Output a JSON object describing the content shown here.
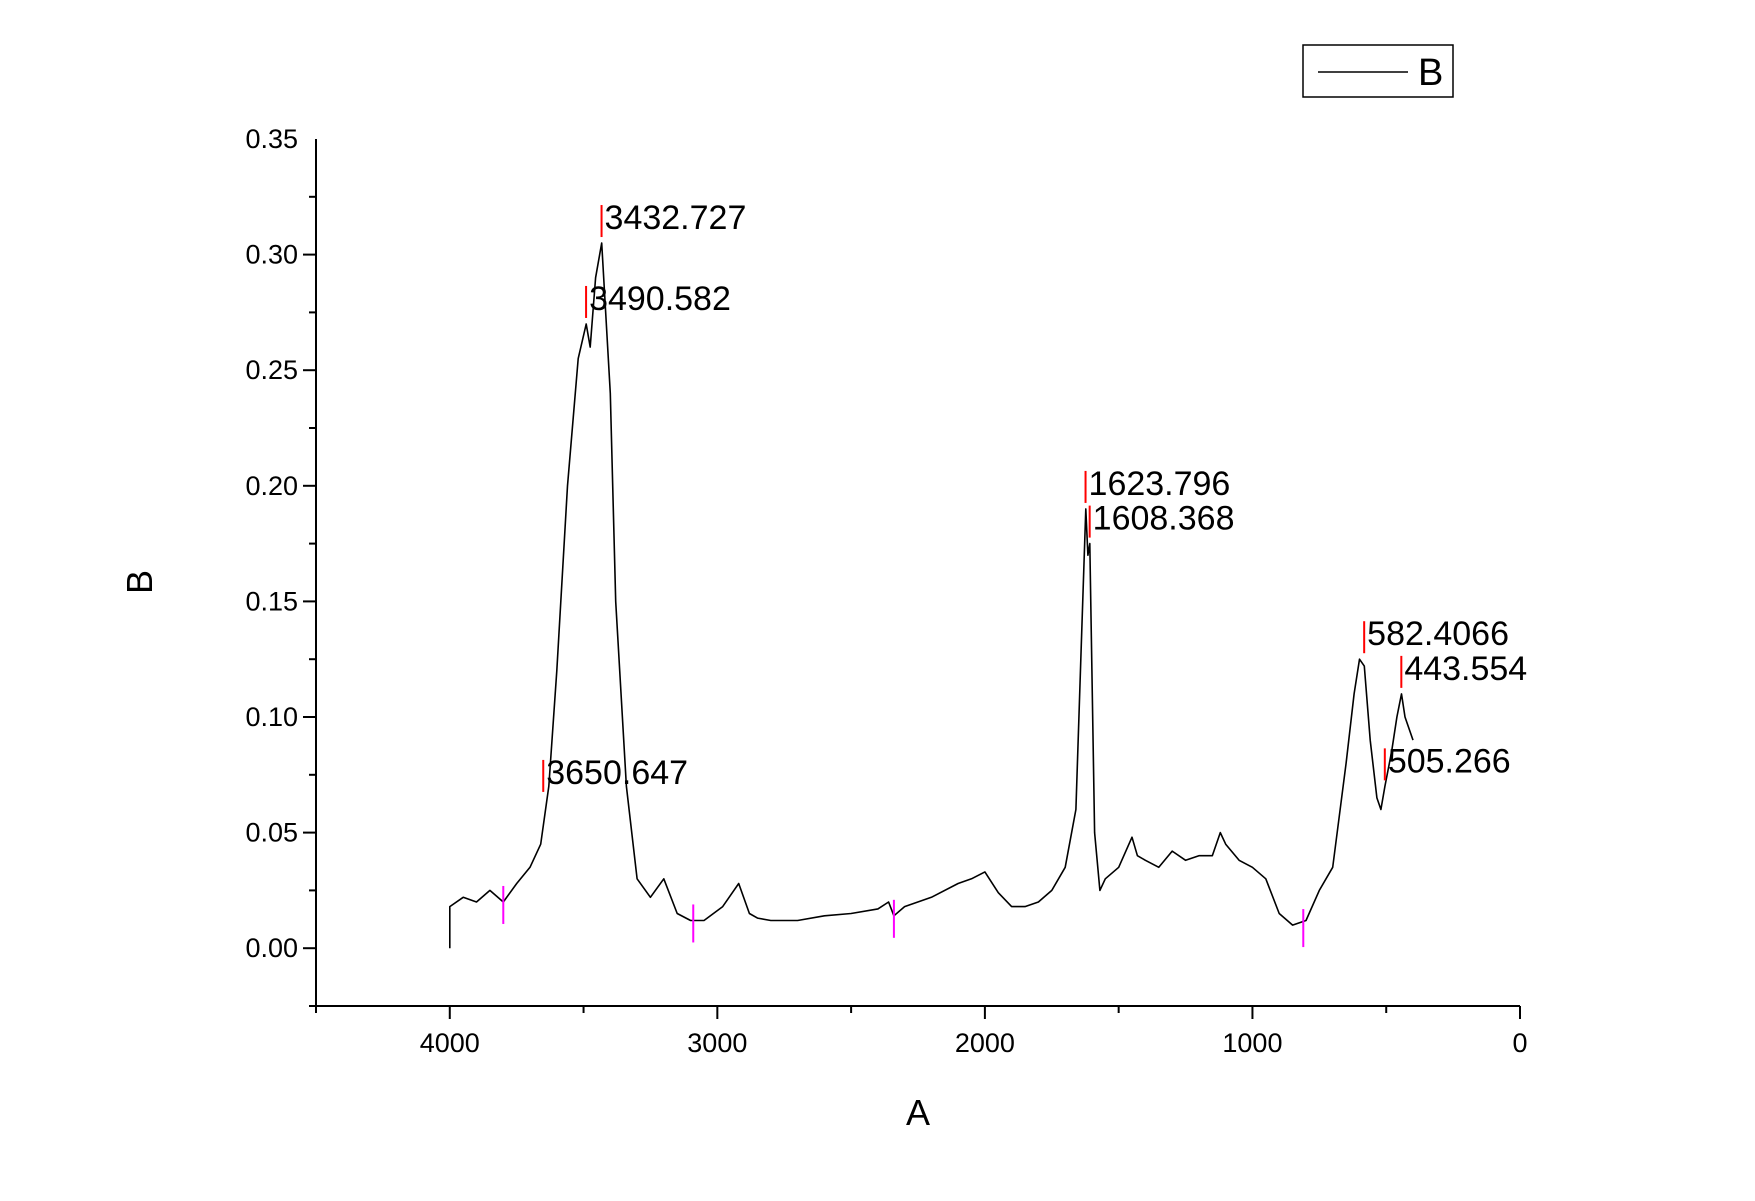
{
  "chart_data": {
    "type": "line",
    "xlabel": "A",
    "ylabel": "B",
    "xlim": [
      4500,
      0
    ],
    "ylim": [
      -0.025,
      0.35
    ],
    "x_ticks": [
      "4000",
      "3000",
      "2000",
      "1000",
      "0"
    ],
    "y_ticks": [
      "0.00",
      "0.05",
      "0.10",
      "0.15",
      "0.20",
      "0.25",
      "0.30",
      "0.35"
    ],
    "legend": {
      "position": "top-right",
      "entries": [
        "B"
      ]
    },
    "series": [
      {
        "name": "B",
        "color": "#000000",
        "x": [
          4000,
          3950,
          3900,
          3850,
          3800,
          3750,
          3700,
          3660,
          3630,
          3600,
          3560,
          3520,
          3490,
          3475,
          3455,
          3432,
          3400,
          3380,
          3340,
          3300,
          3250,
          3200,
          3150,
          3100,
          3050,
          2980,
          2920,
          2880,
          2850,
          2800,
          2700,
          2600,
          2500,
          2400,
          2360,
          2340,
          2300,
          2200,
          2100,
          2050,
          2000,
          1950,
          1900,
          1850,
          1800,
          1750,
          1700,
          1660,
          1640,
          1623,
          1615,
          1608,
          1590,
          1570,
          1550,
          1500,
          1450,
          1430,
          1400,
          1350,
          1300,
          1250,
          1200,
          1150,
          1120,
          1100,
          1050,
          1000,
          950,
          900,
          850,
          800,
          750,
          700,
          650,
          620,
          600,
          582,
          560,
          535,
          520,
          505,
          480,
          460,
          443,
          430,
          400
        ],
        "y": [
          0.018,
          0.022,
          0.02,
          0.025,
          0.02,
          0.028,
          0.035,
          0.045,
          0.07,
          0.12,
          0.2,
          0.255,
          0.27,
          0.26,
          0.29,
          0.305,
          0.24,
          0.15,
          0.07,
          0.03,
          0.022,
          0.03,
          0.015,
          0.012,
          0.012,
          0.018,
          0.028,
          0.015,
          0.013,
          0.012,
          0.012,
          0.014,
          0.015,
          0.017,
          0.02,
          0.014,
          0.018,
          0.022,
          0.028,
          0.03,
          0.033,
          0.024,
          0.018,
          0.018,
          0.02,
          0.025,
          0.035,
          0.06,
          0.13,
          0.19,
          0.17,
          0.175,
          0.05,
          0.025,
          0.03,
          0.035,
          0.048,
          0.04,
          0.038,
          0.035,
          0.042,
          0.038,
          0.04,
          0.04,
          0.05,
          0.045,
          0.038,
          0.035,
          0.03,
          0.015,
          0.01,
          0.012,
          0.025,
          0.035,
          0.08,
          0.11,
          0.125,
          0.122,
          0.09,
          0.065,
          0.06,
          0.07,
          0.085,
          0.1,
          0.11,
          0.1,
          0.09
        ]
      }
    ],
    "peak_labels": [
      {
        "x": 3432.727,
        "y": 0.305,
        "label": "3432.727"
      },
      {
        "x": 3490.582,
        "y": 0.27,
        "label": "3490.582"
      },
      {
        "x": 3650.647,
        "y": 0.065,
        "label": "3650.647"
      },
      {
        "x": 1623.796,
        "y": 0.19,
        "label": "1623.796"
      },
      {
        "x": 1608.368,
        "y": 0.175,
        "label": "1608.368"
      },
      {
        "x": 582.4066,
        "y": 0.125,
        "label": "582.4066"
      },
      {
        "x": 443.554,
        "y": 0.11,
        "label": "443.554"
      },
      {
        "x": 505.266,
        "y": 0.07,
        "label": "505.266"
      }
    ],
    "valley_markers": [
      {
        "x": 3800,
        "y": 0.02
      },
      {
        "x": 3090,
        "y": 0.012
      },
      {
        "x": 2340,
        "y": 0.014
      },
      {
        "x": 810,
        "y": 0.01
      }
    ]
  }
}
